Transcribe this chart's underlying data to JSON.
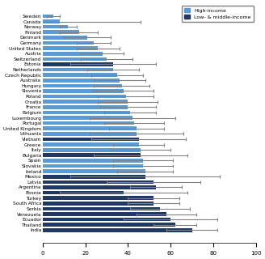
{
  "countries": [
    "Sweden",
    "Canada",
    "Norway",
    "Finland",
    "Denmark",
    "Germany",
    "United States",
    "Austria",
    "Switzerland",
    "Estonia",
    "Netherlands",
    "Czech Republic",
    "Australia",
    "Hungary",
    "Slovenia",
    "Poland",
    "Croatia",
    "France",
    "Belgium",
    "Luxembourg",
    "Portugal",
    "United Kingdom",
    "Lithuania",
    "Vietnam",
    "Greece",
    "Italy",
    "Bulgaria",
    "Spain",
    "Slovakia",
    "Ireland",
    "Mexico",
    "Latvia",
    "Argentina",
    "Bosnia",
    "Turkey",
    "South Africa",
    "Serbia",
    "Venezuela",
    "Ecuador",
    "Thailand",
    "India"
  ],
  "values": [
    5,
    8,
    12,
    17,
    21,
    24,
    26,
    28,
    30,
    33,
    33,
    35,
    36,
    37,
    38,
    39,
    40,
    40,
    41,
    42,
    43,
    44,
    44,
    45,
    45,
    46,
    46,
    47,
    47,
    48,
    48,
    52,
    53,
    38,
    52,
    52,
    55,
    58,
    60,
    62,
    70
  ],
  "error_bars": [
    3,
    38,
    4,
    9,
    11,
    8,
    10,
    10,
    12,
    20,
    12,
    12,
    12,
    13,
    14,
    13,
    14,
    13,
    12,
    20,
    14,
    13,
    22,
    22,
    12,
    14,
    22,
    14,
    14,
    13,
    35,
    22,
    12,
    30,
    12,
    12,
    14,
    14,
    22,
    10,
    12
  ],
  "is_low_middle_income": [
    false,
    false,
    false,
    false,
    false,
    false,
    false,
    false,
    false,
    true,
    false,
    false,
    false,
    false,
    false,
    false,
    false,
    false,
    false,
    false,
    false,
    false,
    false,
    true,
    false,
    false,
    true,
    false,
    false,
    false,
    true,
    true,
    true,
    true,
    true,
    true,
    true,
    true,
    true,
    true,
    true
  ],
  "high_income_color": "#5b9bd5",
  "low_middle_income_color": "#1f3864",
  "error_bar_color": "#808080",
  "title": "",
  "xlabel": "",
  "xlim": [
    0,
    100
  ],
  "background_color": "#ffffff",
  "legend_high_income": "High-income",
  "legend_low_middle": "Low- & middle-income"
}
